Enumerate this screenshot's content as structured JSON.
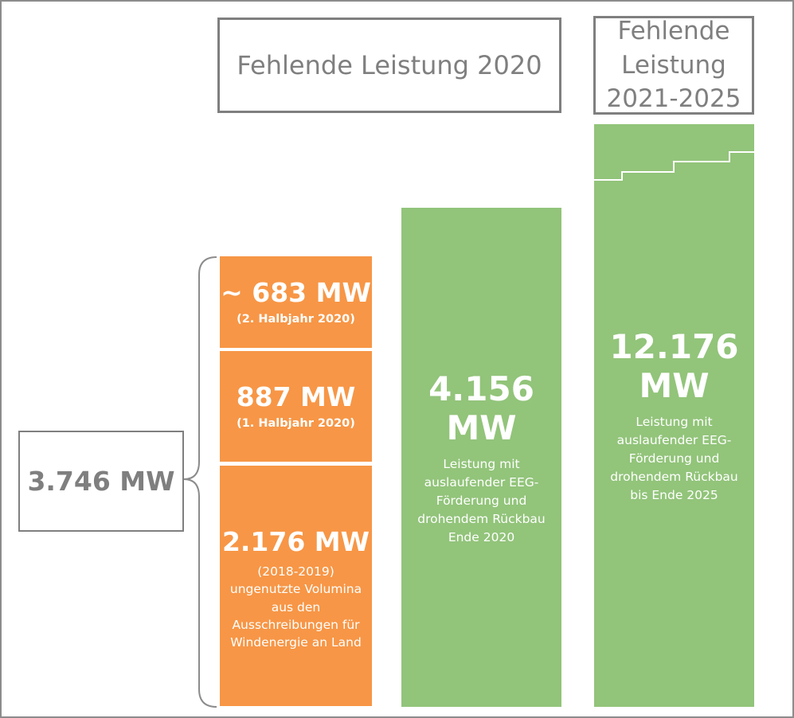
{
  "headers": {
    "left": "Fehlende Leistung 2020",
    "right": "Fehlende Leistung 2021-2025"
  },
  "total": {
    "label": "3.746 MW"
  },
  "segments": [
    {
      "value": "~ 683 MW",
      "period": "(2. Halbjahr 2020)"
    },
    {
      "value": "887 MW",
      "period": "(1. Halbjahr 2020)"
    },
    {
      "value": "2.176 MW",
      "description": "(2018-2019) ungenutzte Volumina aus den Ausschreibungen für Windenergie an Land"
    }
  ],
  "bars": [
    {
      "value": "4.156 MW",
      "description": "Leistung mit auslaufender EEG-Förderung und drohendem Rückbau Ende 2020"
    },
    {
      "value": "12.176 MW",
      "description": "Leistung mit auslaufender EEG-Förderung und drohendem Rückbau bis Ende 2025"
    }
  ],
  "colors": {
    "orange": "#f79646",
    "green": "#92c47a",
    "gray": "#7f7f7f"
  }
}
